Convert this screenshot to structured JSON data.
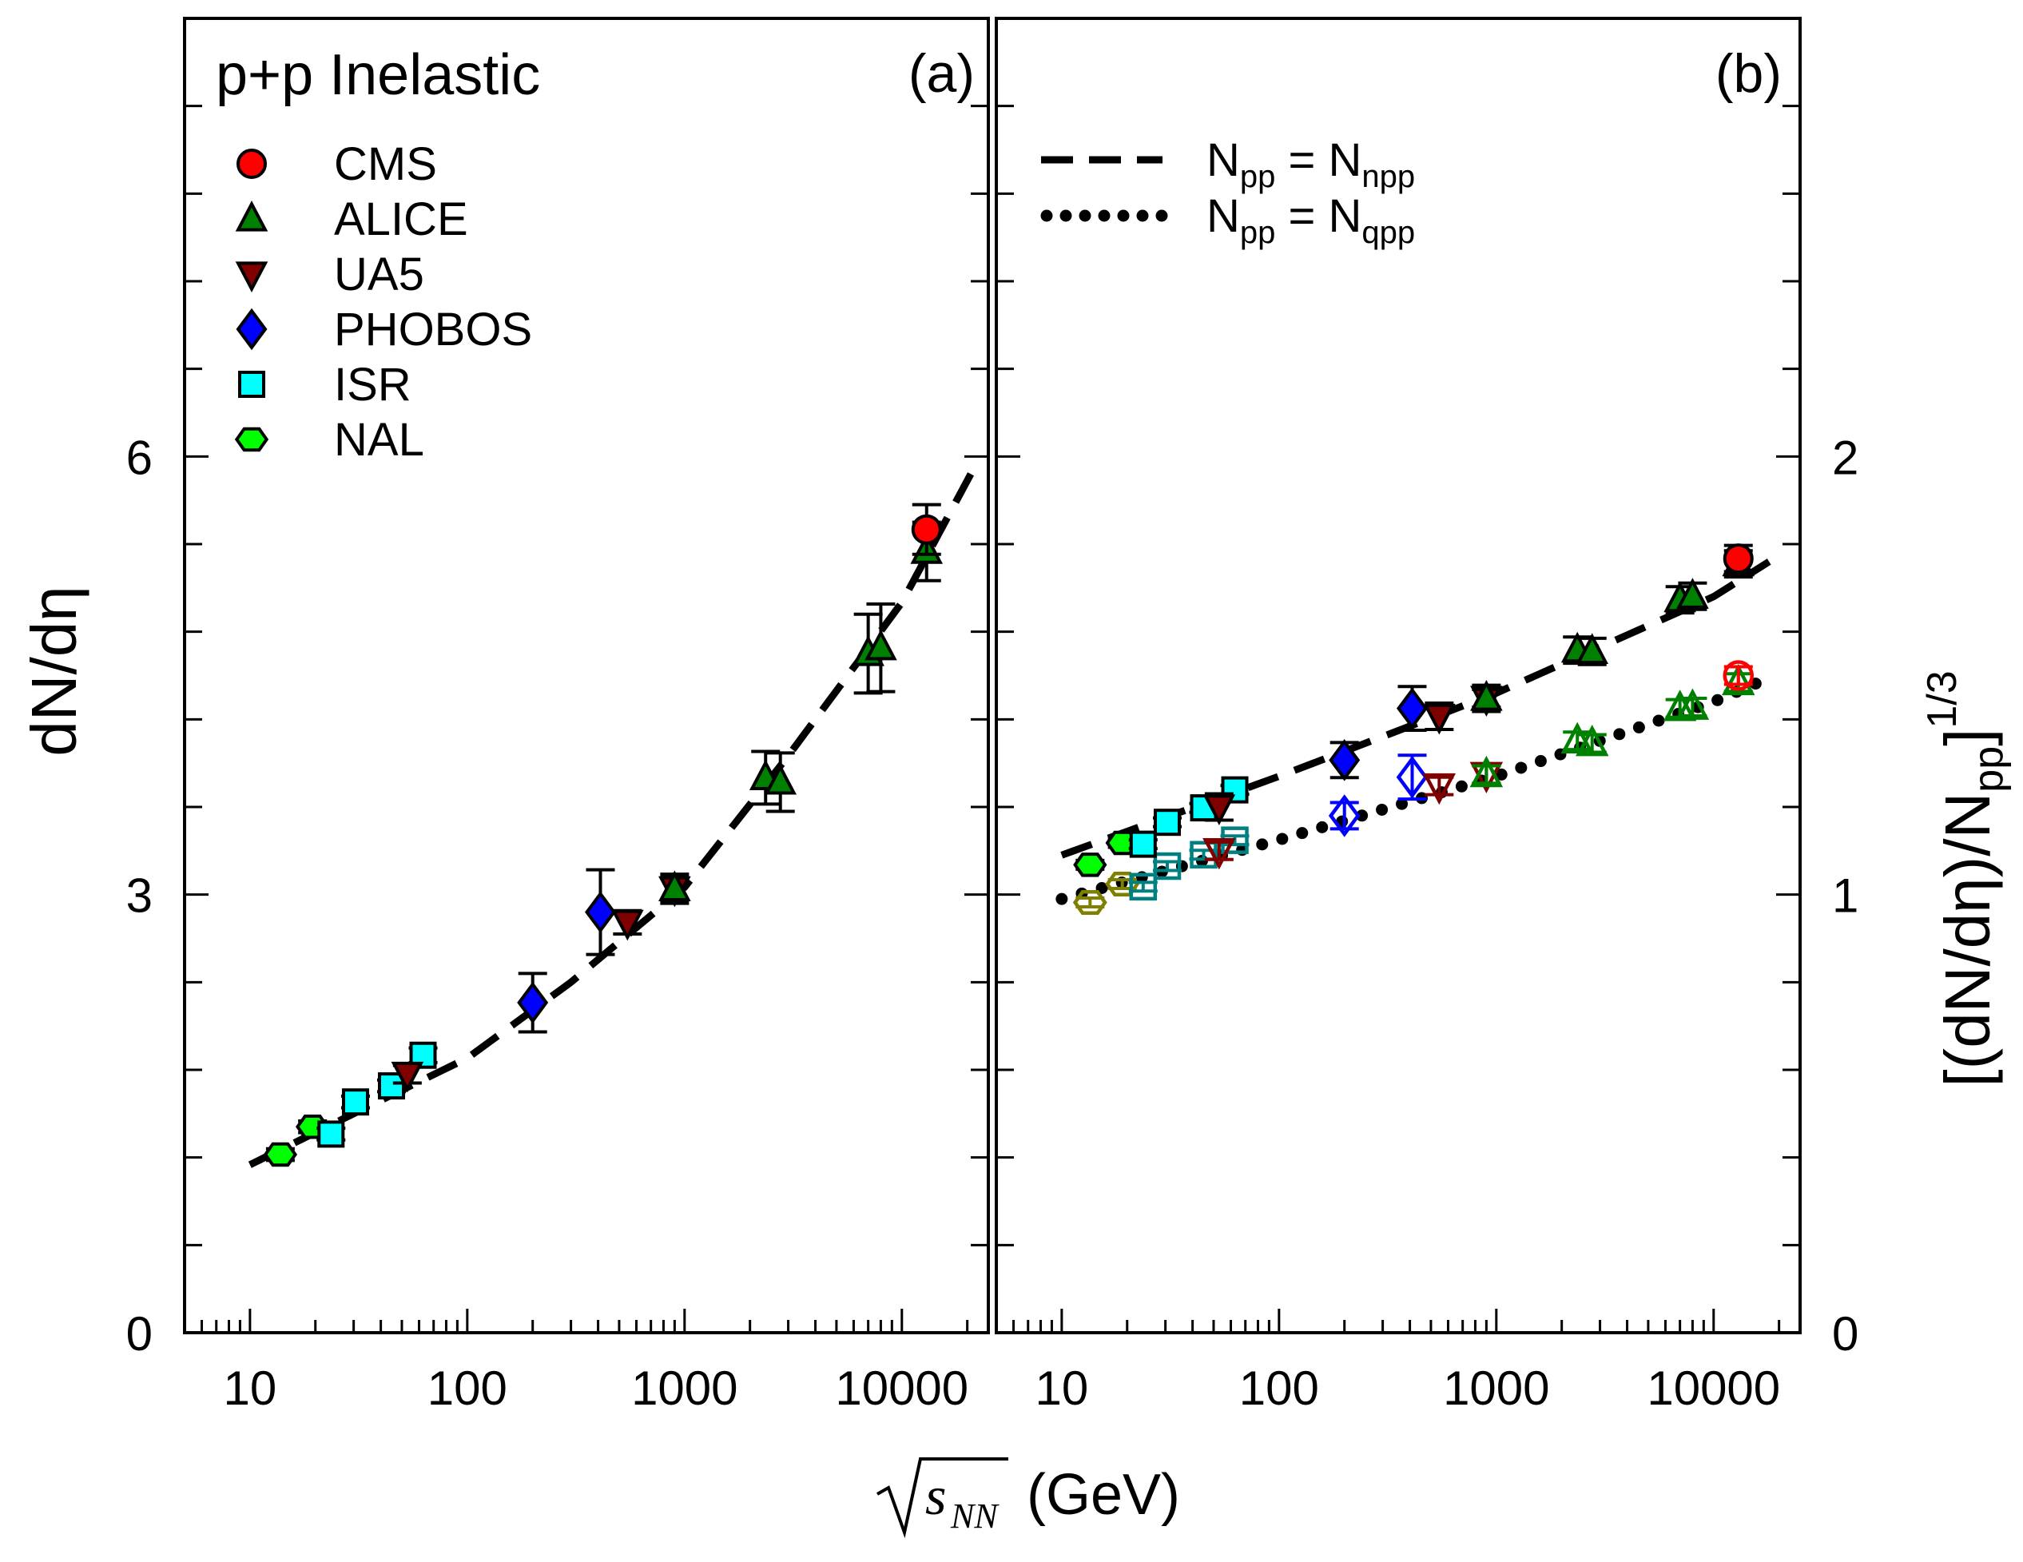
{
  "chart_data": [
    {
      "type": "scatter",
      "panel_label": "(a)",
      "title": "p+p Inelastic",
      "ylabel": "dN/dη",
      "xlabel": "(GeV)",
      "xlabel_symbol": "s",
      "xlabel_subscript": "NN",
      "xscale": "log",
      "xlim": [
        5,
        25000
      ],
      "ylim": [
        0,
        9
      ],
      "yticks": [
        0,
        3,
        6
      ],
      "ytick_labels": [
        "0",
        "3",
        "6"
      ],
      "xticks": [
        10,
        100,
        1000,
        10000
      ],
      "xtick_labels": [
        "10",
        "100",
        "1000",
        "10000"
      ],
      "legend_position": "top-left",
      "series": [
        {
          "name": "CMS",
          "marker": "circle",
          "color": "#ff0000",
          "filled": true,
          "points": [
            [
              13000,
              5.5,
              0.17
            ]
          ]
        },
        {
          "name": "ALICE",
          "marker": "triangle-up",
          "color": "#008000",
          "filled": true,
          "points": [
            [
              900,
              3.04,
              0.1
            ],
            [
              2360,
              3.8,
              0.18
            ],
            [
              2760,
              3.77,
              0.2
            ],
            [
              7000,
              4.65,
              0.27
            ],
            [
              8000,
              4.69,
              0.3
            ],
            [
              13000,
              5.35,
              0.2
            ]
          ]
        },
        {
          "name": "UA5",
          "marker": "triangle-down",
          "color": "#800000",
          "filled": true,
          "points": [
            [
              53,
              1.77,
              0.06
            ],
            [
              546,
              2.81,
              0.08
            ],
            [
              900,
              3.04,
              0.08
            ]
          ]
        },
        {
          "name": "PHOBOS",
          "marker": "diamond",
          "color": "#0000ff",
          "filled": true,
          "points": [
            [
              200,
              2.26,
              0.2
            ],
            [
              410,
              2.88,
              0.29
            ]
          ]
        },
        {
          "name": "ISR",
          "marker": "square",
          "color": "#00ffff",
          "filled": true,
          "points": [
            [
              23.6,
              1.36,
              0.04
            ],
            [
              30.6,
              1.58,
              0.04
            ],
            [
              44.8,
              1.69,
              0.04
            ],
            [
              62.6,
              1.9,
              0.05
            ]
          ]
        },
        {
          "name": "NAL",
          "marker": "hexagon",
          "color": "#00ff00",
          "filled": true,
          "points": [
            [
              13.8,
              1.22,
              0.04
            ],
            [
              19.4,
              1.41,
              0.04
            ]
          ]
        }
      ],
      "curves": [
        {
          "style": "dashed",
          "points": [
            [
              10,
              1.15
            ],
            [
              30,
              1.5
            ],
            [
              100,
              1.88
            ],
            [
              300,
              2.4
            ],
            [
              1000,
              3.05
            ],
            [
              3000,
              3.95
            ],
            [
              10000,
              5.0
            ],
            [
              22000,
              5.95
            ]
          ]
        }
      ]
    },
    {
      "type": "scatter",
      "panel_label": "(b)",
      "ylabel_main": "[(dN/dη)/N",
      "ylabel_sub": "pp",
      "ylabel_close": "]",
      "ylabel_sup": "1/3",
      "xscale": "log",
      "xlim": [
        5,
        25000
      ],
      "ylim": [
        0,
        3
      ],
      "yticks": [
        0,
        1,
        2
      ],
      "ytick_labels": [
        "0",
        "1",
        "2"
      ],
      "xticks": [
        10,
        100,
        1000,
        10000
      ],
      "xtick_labels": [
        "10",
        "100",
        "1000",
        "10000"
      ],
      "legend_position": "top-left",
      "legend": [
        {
          "style": "dashed",
          "label": "N",
          "sub1": "pp",
          "eq": " = N",
          "sub2": "npp"
        },
        {
          "style": "dotted",
          "label": "N",
          "sub1": "pp",
          "eq": " = N",
          "sub2": "qpp"
        }
      ],
      "series_filled": [
        {
          "name": "CMS",
          "marker": "circle",
          "color": "#ff0000",
          "points": [
            [
              13000,
              1.767,
              0.03
            ]
          ]
        },
        {
          "name": "ALICE",
          "marker": "triangle-up",
          "color": "#008000",
          "points": [
            [
              900,
              1.448,
              0.02
            ],
            [
              2360,
              1.558,
              0.03
            ],
            [
              2760,
              1.555,
              0.03
            ],
            [
              7000,
              1.673,
              0.03
            ],
            [
              8000,
              1.681,
              0.03
            ],
            [
              13000,
              1.755,
              0.03
            ]
          ]
        },
        {
          "name": "UA5",
          "marker": "triangle-down",
          "color": "#800000",
          "points": [
            [
              53,
              1.2,
              0.03
            ],
            [
              546,
              1.407,
              0.03
            ],
            [
              900,
              1.448,
              0.03
            ]
          ]
        },
        {
          "name": "PHOBOS",
          "marker": "diamond",
          "color": "#0000ff",
          "points": [
            [
              200,
              1.307,
              0.04
            ],
            [
              410,
              1.425,
              0.05
            ]
          ]
        },
        {
          "name": "ISR",
          "marker": "square",
          "color": "#00ffff",
          "points": [
            [
              23.7,
              1.115,
              0.01
            ],
            [
              30.6,
              1.165,
              0.01
            ],
            [
              45,
              1.198,
              0.01
            ],
            [
              62.6,
              1.239,
              0.01
            ]
          ]
        },
        {
          "name": "NAL",
          "marker": "hexagon",
          "color": "#00ff00",
          "points": [
            [
              13.5,
              1.068,
              0.01
            ],
            [
              19,
              1.118,
              0.01
            ]
          ]
        }
      ],
      "series_open": [
        {
          "name": "CMS",
          "marker": "circle",
          "color": "#ff0000",
          "points": [
            [
              13000,
              1.5,
              0.02
            ]
          ]
        },
        {
          "name": "ALICE",
          "marker": "triangle-up",
          "color": "#008000",
          "points": [
            [
              900,
              1.274,
              0.02
            ],
            [
              2360,
              1.351,
              0.02
            ],
            [
              2760,
              1.345,
              0.02
            ],
            [
              7000,
              1.425,
              0.02
            ],
            [
              8000,
              1.428,
              0.02
            ],
            [
              13000,
              1.484,
              0.02
            ]
          ]
        },
        {
          "name": "UA5",
          "marker": "triangle-down",
          "color": "#800000",
          "points": [
            [
              53,
              1.1,
              0.02
            ],
            [
              546,
              1.248,
              0.02
            ],
            [
              900,
              1.274,
              0.02
            ]
          ]
        },
        {
          "name": "PHOBOS",
          "marker": "diamond",
          "color": "#0000ff",
          "points": [
            [
              200,
              1.18,
              0.03
            ],
            [
              410,
              1.268,
              0.05
            ]
          ]
        },
        {
          "name": "ISR",
          "marker": "square",
          "color": "#008080",
          "points": [
            [
              23.7,
              1.018,
              0.01
            ],
            [
              30.6,
              1.065,
              0.01
            ],
            [
              45,
              1.091,
              0.01
            ],
            [
              62.6,
              1.124,
              0.01
            ]
          ]
        },
        {
          "name": "NAL",
          "marker": "hexagon",
          "color": "#808000",
          "points": [
            [
              13.5,
              0.982,
              0.01
            ],
            [
              19,
              1.024,
              0.01
            ]
          ]
        }
      ],
      "curves": [
        {
          "style": "dashed",
          "points": [
            [
              10,
              1.09
            ],
            [
              100,
              1.27
            ],
            [
              1000,
              1.46
            ],
            [
              10000,
              1.68
            ],
            [
              18000,
              1.76
            ]
          ]
        },
        {
          "style": "dotted",
          "points": [
            [
              10,
              0.99
            ],
            [
              100,
              1.125
            ],
            [
              1000,
              1.27
            ],
            [
              10000,
              1.44
            ],
            [
              19000,
              1.5
            ]
          ]
        }
      ]
    }
  ]
}
